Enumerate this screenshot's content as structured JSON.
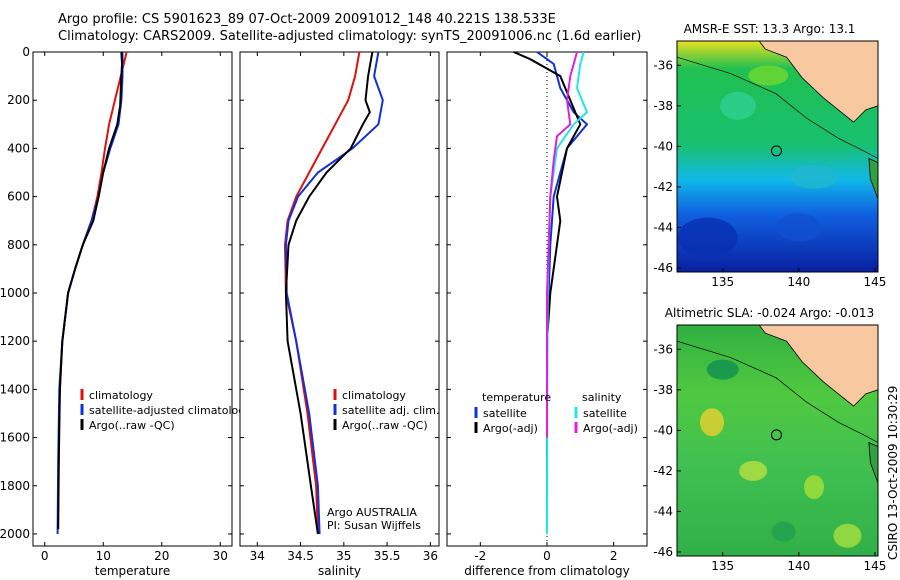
{
  "header": {
    "line1": "Argo profile: CS 5901623_89 07-Oct-2009 20091012_148 40.221S 138.533E",
    "line2": "Climatology: CARS2009. Satellite-adjusted climatology: synTS_20091006.nc (1.6d earlier)"
  },
  "side_label": "CSIRO 13-Oct-2009 10:30:29",
  "colors": {
    "red": "#e01010",
    "blue": "#1030d8",
    "black": "#000000",
    "cyan": "#20e8e8",
    "magenta": "#e020e0",
    "land": "#f8c8a0"
  },
  "chart_data": [
    {
      "type": "line",
      "xlabel": "temperature",
      "xlim": [
        -2,
        32
      ],
      "xticks": [
        0,
        10,
        20,
        30
      ],
      "ylim": [
        2050,
        0
      ],
      "yticks": [
        0,
        200,
        400,
        600,
        800,
        1000,
        1200,
        1400,
        1600,
        1800,
        2000
      ],
      "legend_position": "lower-right",
      "series": [
        {
          "name": "climatology",
          "color": "#e01010",
          "x": [
            14.0,
            13.0,
            12.0,
            11.0,
            10.3,
            9.7,
            9.0,
            8.0,
            6.5,
            5.2,
            4.0,
            3.0,
            2.6,
            2.4,
            2.3
          ],
          "y": [
            0,
            100,
            200,
            300,
            400,
            500,
            600,
            700,
            800,
            900,
            1000,
            1200,
            1400,
            1600,
            1900
          ]
        },
        {
          "name": "satellite-adjusted climatology",
          "color": "#1030d8",
          "x": [
            13.3,
            13.3,
            13.1,
            12.6,
            11.2,
            10.0,
            9.2,
            8.0,
            6.5,
            5.2,
            4.0,
            3.0,
            2.5,
            2.3,
            2.2
          ],
          "y": [
            0,
            100,
            200,
            300,
            400,
            500,
            600,
            700,
            800,
            900,
            1000,
            1200,
            1400,
            1700,
            2000
          ]
        },
        {
          "name": "Argo(..raw -QC)",
          "color": "#000000",
          "x": [
            13.1,
            13.2,
            13.0,
            12.9,
            12.4,
            11.0,
            10.0,
            9.2,
            8.3,
            6.5,
            5.2,
            4.0,
            3.0,
            2.6,
            2.4,
            2.3
          ],
          "y": [
            0,
            50,
            150,
            220,
            300,
            400,
            500,
            600,
            700,
            800,
            900,
            1000,
            1200,
            1400,
            1700,
            1980
          ]
        }
      ]
    },
    {
      "type": "line",
      "xlabel": "salinity",
      "xlim": [
        33.8,
        36.1
      ],
      "xticks": [
        34,
        34.5,
        35,
        35.5,
        36
      ],
      "xticklabels": [
        "34",
        "34.5",
        "35",
        "35.5",
        "36"
      ],
      "ylim": [
        2050,
        0
      ],
      "legend_position": "lower-right",
      "annotation": [
        "Argo AUSTRALIA",
        "PI: Susan Wijffels"
      ],
      "series": [
        {
          "name": "climatology",
          "color": "#e01010",
          "x": [
            35.18,
            35.13,
            35.05,
            34.9,
            34.75,
            34.6,
            34.45,
            34.35,
            34.32,
            34.33,
            34.45,
            34.58,
            34.68,
            34.7
          ],
          "y": [
            0,
            100,
            200,
            300,
            400,
            500,
            600,
            700,
            800,
            1000,
            1200,
            1500,
            1800,
            2000
          ]
        },
        {
          "name": "satellite adj. clim.",
          "color": "#1030d8",
          "x": [
            35.4,
            35.35,
            35.45,
            35.4,
            35.1,
            34.7,
            34.47,
            34.36,
            34.33,
            34.34,
            34.45,
            34.6,
            34.7,
            34.72
          ],
          "y": [
            0,
            100,
            200,
            300,
            400,
            500,
            600,
            700,
            800,
            1000,
            1200,
            1500,
            1800,
            2000
          ]
        },
        {
          "name": "Argo(..raw -QC)",
          "color": "#000000",
          "x": [
            35.33,
            35.28,
            35.25,
            35.3,
            35.22,
            35.08,
            34.8,
            34.6,
            34.45,
            34.36,
            34.33,
            34.35,
            34.5,
            34.62,
            34.7
          ],
          "y": [
            0,
            100,
            200,
            250,
            300,
            400,
            500,
            600,
            700,
            800,
            1000,
            1200,
            1500,
            1800,
            2000
          ]
        }
      ]
    },
    {
      "type": "line",
      "xlabel": "difference from climatology",
      "xlim": [
        -3,
        3
      ],
      "xticks": [
        -2,
        0,
        2
      ],
      "ylim": [
        2050,
        0
      ],
      "legend_position": "lower",
      "legend_headers": [
        "temperature",
        "salinity"
      ],
      "series": [
        {
          "name": "satellite",
          "group": "temperature",
          "color": "#1030d8",
          "x": [
            -0.3,
            0.2,
            0.4,
            0.8,
            1.2,
            0.6,
            0.2,
            0.1,
            0.05,
            0,
            0,
            0
          ],
          "y": [
            0,
            50,
            150,
            250,
            300,
            400,
            600,
            800,
            1000,
            1200,
            1600,
            2000
          ]
        },
        {
          "name": "Argo(-adj)",
          "group": "temperature",
          "color": "#000000",
          "x": [
            -1.0,
            -0.5,
            0.4,
            0.7,
            1.0,
            0.6,
            0.3,
            0.4,
            0.3,
            0.1,
            0,
            0
          ],
          "y": [
            0,
            30,
            100,
            200,
            300,
            400,
            600,
            700,
            800,
            1000,
            1200,
            1400
          ]
        },
        {
          "name": "satellite",
          "group": "salinity",
          "color": "#20e8e8",
          "x": [
            1.1,
            1.0,
            0.9,
            1.2,
            0.8,
            0.3,
            0.1,
            0.05,
            0.02,
            0.01,
            0
          ],
          "y": [
            0,
            50,
            150,
            250,
            300,
            400,
            600,
            800,
            1000,
            1400,
            2000
          ]
        },
        {
          "name": "Argo(-adj)",
          "group": "salinity",
          "color": "#e020e0",
          "x": [
            0.9,
            0.7,
            0.6,
            0.7,
            0.3,
            0.2,
            0.1,
            0.05,
            0,
            0
          ],
          "y": [
            0,
            100,
            200,
            300,
            350,
            450,
            600,
            800,
            1000,
            1600
          ]
        }
      ]
    },
    {
      "type": "heatmap",
      "title": "AMSR-E SST: 13.3 Argo: 13.1",
      "xlim": [
        132,
        145.2
      ],
      "ylim": [
        -46.2,
        -34.8
      ],
      "xticks": [
        135,
        140,
        145
      ],
      "yticks": [
        -36,
        -38,
        -40,
        -42,
        -44,
        -46
      ],
      "argo_position": [
        138.533,
        -40.221
      ]
    },
    {
      "type": "heatmap",
      "title": "Altimetric SLA: -0.024 Argo: -0.013",
      "xlim": [
        132,
        145.2
      ],
      "ylim": [
        -46.2,
        -34.8
      ],
      "xticks": [
        135,
        140,
        145
      ],
      "yticks": [
        -36,
        -38,
        -40,
        -42,
        -44,
        -46
      ],
      "argo_position": [
        138.533,
        -40.221
      ]
    }
  ]
}
